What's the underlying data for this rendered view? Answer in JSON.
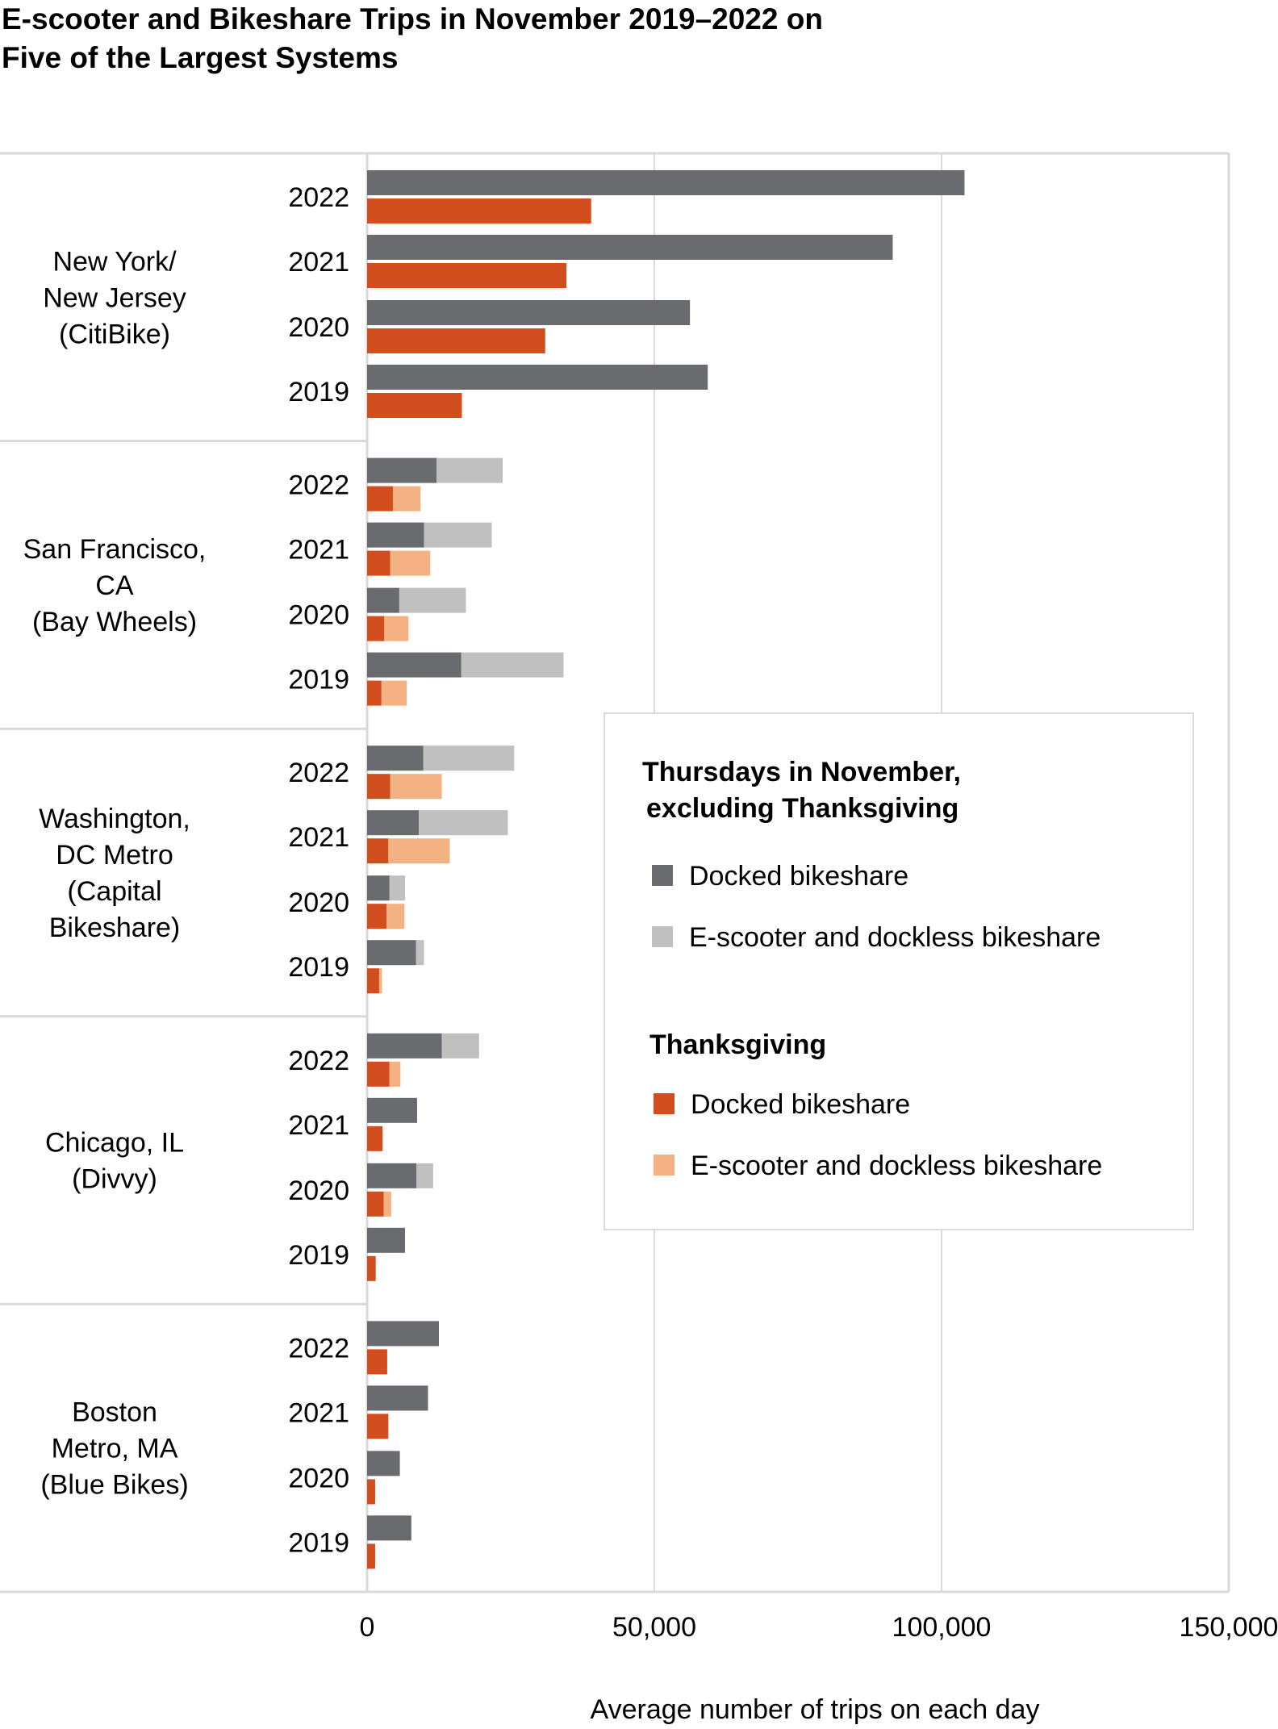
{
  "chart_data": {
    "type": "bar",
    "title_lines": [
      "E-scooter and Bikeshare Trips in November 2019–2022 on",
      "Five of the Largest Systems"
    ],
    "xlabel": "Average number of trips on each day",
    "ylabel": "",
    "xlim": [
      0,
      150000
    ],
    "x_ticks": [
      0,
      50000,
      100000,
      150000
    ],
    "x_tick_labels": [
      "0",
      "50,000",
      "100,000",
      "150,000"
    ],
    "grid": true,
    "legend_position": "right",
    "colors": {
      "thursday_docked": "#6a6b6e",
      "thursday_dockless": "#c0c0c0",
      "thanksgiving_docked": "#d24e1e",
      "thanksgiving_dockless": "#f4b183"
    },
    "legend": {
      "groups": [
        {
          "title_lines": [
            "Thursdays in November,",
            "excluding Thanksgiving"
          ],
          "items": [
            {
              "label": "Docked bikeshare",
              "color_key": "thursday_docked"
            },
            {
              "label": "E-scooter and dockless bikeshare",
              "color_key": "thursday_dockless"
            }
          ]
        },
        {
          "title_lines": [
            "Thanksgiving"
          ],
          "items": [
            {
              "label": "Docked bikeshare",
              "color_key": "thanksgiving_docked"
            },
            {
              "label": "E-scooter and dockless bikeshare",
              "color_key": "thanksgiving_dockless"
            }
          ]
        }
      ]
    },
    "systems": [
      {
        "label_lines": [
          "New York/",
          "New Jersey",
          "(CitiBike)"
        ],
        "years": [
          {
            "year": "2022",
            "thursday": {
              "docked": 104000,
              "dockless": 0
            },
            "thanksgiving": {
              "docked": 39000,
              "dockless": 0
            }
          },
          {
            "year": "2021",
            "thursday": {
              "docked": 91500,
              "dockless": 0
            },
            "thanksgiving": {
              "docked": 34700,
              "dockless": 0
            }
          },
          {
            "year": "2020",
            "thursday": {
              "docked": 56200,
              "dockless": 0
            },
            "thanksgiving": {
              "docked": 31000,
              "dockless": 0
            }
          },
          {
            "year": "2019",
            "thursday": {
              "docked": 59300,
              "dockless": 0
            },
            "thanksgiving": {
              "docked": 16500,
              "dockless": 0
            }
          }
        ]
      },
      {
        "label_lines": [
          "San Francisco,",
          "CA",
          "(Bay Wheels)"
        ],
        "years": [
          {
            "year": "2022",
            "thursday": {
              "docked": 12100,
              "dockless": 11500
            },
            "thanksgiving": {
              "docked": 4500,
              "dockless": 4800
            }
          },
          {
            "year": "2021",
            "thursday": {
              "docked": 9900,
              "dockless": 11800
            },
            "thanksgiving": {
              "docked": 4000,
              "dockless": 7000
            }
          },
          {
            "year": "2020",
            "thursday": {
              "docked": 5600,
              "dockless": 11600
            },
            "thanksgiving": {
              "docked": 3000,
              "dockless": 4200
            }
          },
          {
            "year": "2019",
            "thursday": {
              "docked": 16400,
              "dockless": 17800
            },
            "thanksgiving": {
              "docked": 2500,
              "dockless": 4400
            }
          }
        ]
      },
      {
        "label_lines": [
          "Washington,",
          "DC Metro",
          "(Capital",
          "Bikeshare)"
        ],
        "years": [
          {
            "year": "2022",
            "thursday": {
              "docked": 9800,
              "dockless": 15800
            },
            "thanksgiving": {
              "docked": 4000,
              "dockless": 9000
            }
          },
          {
            "year": "2021",
            "thursday": {
              "docked": 9000,
              "dockless": 15500
            },
            "thanksgiving": {
              "docked": 3700,
              "dockless": 10700
            }
          },
          {
            "year": "2020",
            "thursday": {
              "docked": 3900,
              "dockless": 2700
            },
            "thanksgiving": {
              "docked": 3400,
              "dockless": 3100
            }
          },
          {
            "year": "2019",
            "thursday": {
              "docked": 8500,
              "dockless": 1400
            },
            "thanksgiving": {
              "docked": 2100,
              "dockless": 500
            }
          }
        ]
      },
      {
        "label_lines": [
          "Chicago, IL",
          "(Divvy)"
        ],
        "years": [
          {
            "year": "2022",
            "thursday": {
              "docked": 13000,
              "dockless": 6500
            },
            "thanksgiving": {
              "docked": 3900,
              "dockless": 1900
            }
          },
          {
            "year": "2021",
            "thursday": {
              "docked": 8700,
              "dockless": 0
            },
            "thanksgiving": {
              "docked": 2700,
              "dockless": 0
            }
          },
          {
            "year": "2020",
            "thursday": {
              "docked": 8600,
              "dockless": 2900
            },
            "thanksgiving": {
              "docked": 2900,
              "dockless": 1300
            }
          },
          {
            "year": "2019",
            "thursday": {
              "docked": 6600,
              "dockless": 0
            },
            "thanksgiving": {
              "docked": 1500,
              "dockless": 0
            }
          }
        ]
      },
      {
        "label_lines": [
          "Boston",
          "Metro, MA",
          "(Blue Bikes)"
        ],
        "years": [
          {
            "year": "2022",
            "thursday": {
              "docked": 12500,
              "dockless": 0
            },
            "thanksgiving": {
              "docked": 3500,
              "dockless": 0
            }
          },
          {
            "year": "2021",
            "thursday": {
              "docked": 10600,
              "dockless": 0
            },
            "thanksgiving": {
              "docked": 3700,
              "dockless": 0
            }
          },
          {
            "year": "2020",
            "thursday": {
              "docked": 5700,
              "dockless": 0
            },
            "thanksgiving": {
              "docked": 1400,
              "dockless": 0
            }
          },
          {
            "year": "2019",
            "thursday": {
              "docked": 7700,
              "dockless": 0
            },
            "thanksgiving": {
              "docked": 1400,
              "dockless": 0
            }
          }
        ]
      }
    ]
  }
}
